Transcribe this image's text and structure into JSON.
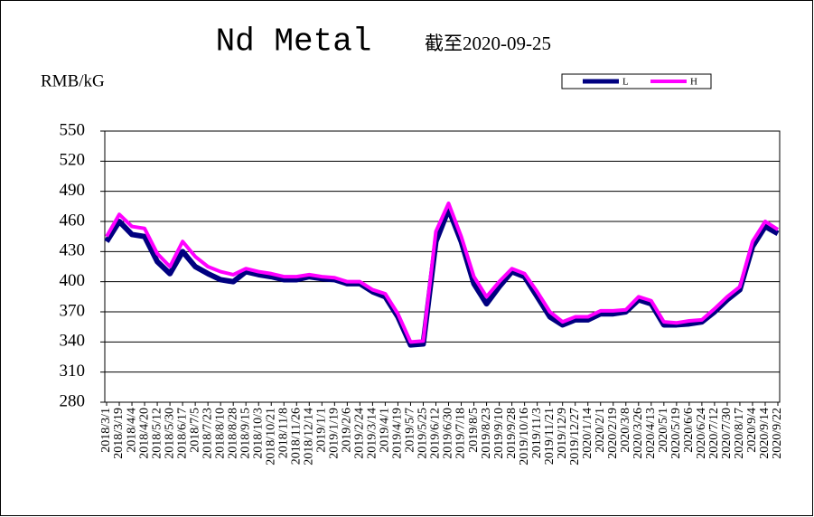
{
  "chart_data": {
    "type": "line",
    "title": "Nd Metal",
    "subtitle": "截至2020-09-25",
    "y_label": "RMB/kG",
    "categories": [
      "2018/3/1",
      "2018/3/19",
      "2018/4/4",
      "2018/4/20",
      "2018/5/12",
      "2018/5/30",
      "2018/6/17",
      "2018/7/5",
      "2018/7/23",
      "2018/8/10",
      "2018/8/28",
      "2018/9/15",
      "2018/10/3",
      "2018/10/21",
      "2018/11/8",
      "2018/11/26",
      "2018/12/14",
      "2019/1/1",
      "2019/1/19",
      "2019/2/6",
      "2019/2/24",
      "2019/3/14",
      "2019/4/1",
      "2019/4/19",
      "2019/5/7",
      "2019/5/25",
      "2019/6/12",
      "2019/6/30",
      "2019/7/18",
      "2019/8/5",
      "2019/8/23",
      "2019/9/10",
      "2019/9/28",
      "2019/10/16",
      "2019/11/3",
      "2019/11/21",
      "2019/12/9",
      "2019/12/27",
      "2020/1/14",
      "2020/2/1",
      "2020/2/19",
      "2020/3/8",
      "2020/3/26",
      "2020/4/13",
      "2020/5/1",
      "2020/5/19",
      "2020/6/6",
      "2020/6/24",
      "2020/7/12",
      "2020/7/30",
      "2020/8/17",
      "2020/9/4",
      "2020/9/14",
      "2020/9/22"
    ],
    "series": [
      {
        "name": "L",
        "color": "#000080",
        "values": [
          440,
          460,
          447,
          445,
          420,
          408,
          430,
          415,
          408,
          402,
          400,
          410,
          407,
          405,
          402,
          402,
          405,
          403,
          402,
          398,
          398,
          390,
          385,
          365,
          337,
          338,
          440,
          472,
          440,
          398,
          378,
          395,
          410,
          405,
          385,
          365,
          357,
          362,
          362,
          368,
          368,
          370,
          382,
          378,
          357,
          357,
          358,
          360,
          370,
          382,
          392,
          435,
          455,
          448
        ]
      },
      {
        "name": "H",
        "color": "#ff00ff",
        "values": [
          445,
          467,
          455,
          453,
          428,
          415,
          440,
          425,
          415,
          410,
          407,
          413,
          410,
          408,
          405,
          405,
          407,
          405,
          404,
          400,
          400,
          392,
          388,
          368,
          340,
          341,
          450,
          478,
          445,
          405,
          385,
          400,
          413,
          408,
          390,
          370,
          360,
          365,
          365,
          371,
          371,
          372,
          385,
          381,
          360,
          359,
          361,
          362,
          373,
          385,
          395,
          440,
          460,
          452
        ]
      }
    ],
    "ylim": [
      280,
      550
    ],
    "yticks": [
      280,
      310,
      340,
      370,
      400,
      430,
      460,
      490,
      520,
      550
    ],
    "grid": true
  }
}
